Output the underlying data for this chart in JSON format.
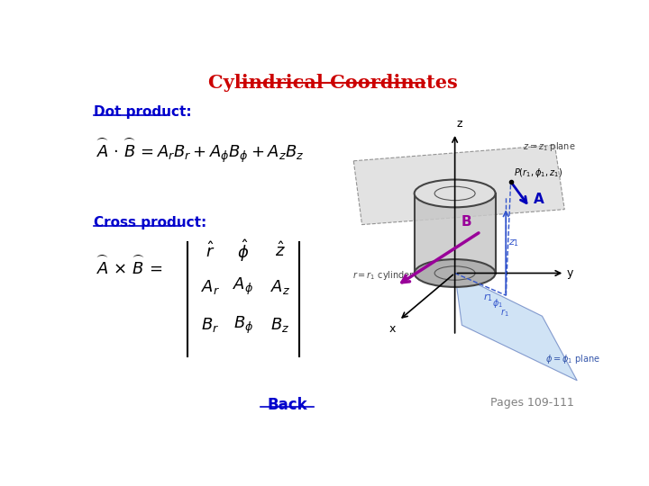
{
  "title": "Cylindrical Coordinates",
  "title_color": "#CC0000",
  "title_fontsize": 15,
  "bg_color": "#FFFFFF",
  "dot_product_label": "Dot product:",
  "dot_product_label_color": "#0000CC",
  "cross_product_label": "Cross product:",
  "cross_product_label_color": "#0000CC",
  "back_label": "Back",
  "back_color": "#0000CC",
  "pages_label": "Pages 109-111",
  "pages_color": "#808080"
}
